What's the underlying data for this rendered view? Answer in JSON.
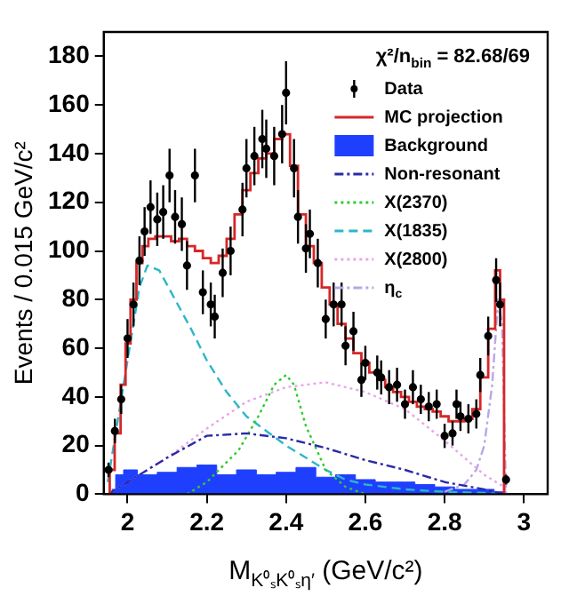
{
  "chart_data": {
    "type": "line",
    "xlabel": "M$_{K⁰ₛK⁰ₛη′}$ (GeV/c²)",
    "ylabel": "Events / 0.015 GeV/c²",
    "annotations": [
      "χ²/n$_{bin}$ = 82.68/69"
    ],
    "xlim": [
      1.94,
      3.06
    ],
    "xticks": [
      2,
      2.2,
      2.4,
      2.6,
      2.8,
      3
    ],
    "ylim": [
      0,
      190
    ],
    "yticks": [
      0,
      20,
      40,
      60,
      80,
      100,
      120,
      140,
      160,
      180
    ],
    "grid": false,
    "legend": "top right",
    "series": [
      {
        "name": "Data",
        "type": "scatter",
        "marker": "circle",
        "color": "#000000",
        "x": [
          1.952,
          1.968,
          1.984,
          2.0,
          2.015,
          2.03,
          2.043,
          2.058,
          2.075,
          2.09,
          2.106,
          2.12,
          2.137,
          2.15,
          2.17,
          2.19,
          2.21,
          2.22,
          2.24,
          2.26,
          2.29,
          2.3,
          2.32,
          2.34,
          2.35,
          2.37,
          2.39,
          2.4,
          2.42,
          2.43,
          2.45,
          2.46,
          2.48,
          2.5,
          2.52,
          2.54,
          2.55,
          2.57,
          2.59,
          2.6,
          2.63,
          2.64,
          2.66,
          2.68,
          2.7,
          2.72,
          2.74,
          2.76,
          2.78,
          2.8,
          2.82,
          2.83,
          2.84,
          2.86,
          2.88,
          2.89,
          2.91,
          2.93,
          2.94,
          2.955
        ],
        "values": [
          10,
          26,
          39,
          64,
          78,
          96,
          108,
          118,
          113,
          116,
          131,
          114,
          111,
          94,
          131,
          83,
          78,
          73,
          91,
          100,
          117,
          134,
          139,
          146,
          142,
          139,
          148,
          165,
          134,
          114,
          101,
          107,
          95,
          72,
          78,
          78,
          61,
          67,
          47,
          54,
          50,
          48,
          44,
          45,
          37,
          44,
          39,
          36,
          37,
          24,
          25,
          37,
          32,
          31,
          33,
          49,
          65,
          88,
          78,
          6
        ],
        "errors": [
          3,
          5,
          6,
          8,
          9,
          10,
          10,
          11,
          11,
          11,
          11,
          11,
          11,
          10,
          11,
          9,
          9,
          9,
          10,
          10,
          11,
          12,
          12,
          12,
          12,
          12,
          12,
          13,
          12,
          11,
          10,
          10,
          10,
          8,
          9,
          9,
          8,
          8,
          7,
          7,
          7,
          7,
          7,
          7,
          6,
          7,
          6,
          6,
          6,
          5,
          5,
          6,
          6,
          6,
          6,
          7,
          8,
          9,
          9,
          2
        ]
      },
      {
        "name": "MC projection",
        "type": "step",
        "color": "#d62728",
        "line_style": "solid",
        "x": [
          1.95,
          1.96,
          1.975,
          1.99,
          2.0,
          2.015,
          2.03,
          2.045,
          2.06,
          2.08,
          2.1,
          2.12,
          2.14,
          2.16,
          2.18,
          2.2,
          2.22,
          2.24,
          2.26,
          2.28,
          2.3,
          2.32,
          2.34,
          2.36,
          2.38,
          2.4,
          2.42,
          2.44,
          2.46,
          2.48,
          2.5,
          2.52,
          2.54,
          2.56,
          2.58,
          2.6,
          2.62,
          2.64,
          2.66,
          2.68,
          2.7,
          2.72,
          2.74,
          2.76,
          2.78,
          2.8,
          2.82,
          2.84,
          2.86,
          2.88,
          2.9,
          2.92,
          2.935,
          2.945,
          2.955
        ],
        "values": [
          0,
          10,
          25,
          45,
          62,
          80,
          95,
          102,
          105,
          106,
          106,
          104,
          105,
          102,
          100,
          97,
          95,
          98,
          105,
          115,
          125,
          132,
          138,
          140,
          146,
          148,
          135,
          115,
          102,
          95,
          85,
          78,
          70,
          64,
          58,
          54,
          50,
          47,
          44,
          42,
          40,
          38,
          36,
          35,
          34,
          32,
          30,
          30,
          31,
          35,
          48,
          68,
          92,
          80,
          0
        ]
      },
      {
        "name": "Background",
        "type": "area",
        "color": "#1f3fff",
        "x": [
          1.96,
          1.98,
          2.0,
          2.05,
          2.1,
          2.15,
          2.2,
          2.25,
          2.3,
          2.35,
          2.4,
          2.45,
          2.5,
          2.55,
          2.6,
          2.65,
          2.7,
          2.75,
          2.8,
          2.85,
          2.9,
          2.95
        ],
        "values": [
          2,
          8,
          10,
          8,
          9,
          11,
          12,
          8,
          10,
          8,
          9,
          11,
          7,
          8,
          6,
          5,
          5,
          4,
          3,
          2,
          2,
          1
        ]
      },
      {
        "name": "Non-resonant",
        "type": "line",
        "color": "#2a2aa8",
        "line_style": "dashdot",
        "x": [
          1.95,
          2.0,
          2.1,
          2.2,
          2.3,
          2.4,
          2.5,
          2.6,
          2.7,
          2.8,
          2.9,
          2.95
        ],
        "values": [
          0,
          5,
          15,
          24,
          25,
          23,
          19,
          14,
          10,
          5,
          2,
          0
        ]
      },
      {
        "name": "X(2370)",
        "type": "line",
        "color": "#2ecc2e",
        "line_style": "dotted",
        "x": [
          2.15,
          2.2,
          2.28,
          2.33,
          2.37,
          2.4,
          2.42,
          2.45,
          2.5,
          2.55,
          2.6
        ],
        "values": [
          0,
          5,
          18,
          32,
          45,
          49,
          45,
          28,
          10,
          3,
          0
        ]
      },
      {
        "name": "X(1835)",
        "type": "line",
        "color": "#2ab7c9",
        "line_style": "dashed",
        "x": [
          1.95,
          2.0,
          2.03,
          2.05,
          2.08,
          2.12,
          2.16,
          2.2,
          2.25,
          2.3,
          2.35,
          2.4,
          2.45,
          2.5,
          2.55,
          2.6,
          2.7,
          2.8,
          2.9,
          2.95
        ],
        "values": [
          5,
          55,
          85,
          94,
          92,
          80,
          68,
          55,
          42,
          32,
          26,
          20,
          15,
          10,
          6,
          4,
          2,
          1,
          0.5,
          0
        ]
      },
      {
        "name": "X(2800)",
        "type": "line",
        "color": "#e8a6e8",
        "line_style": "dotted",
        "x": [
          1.95,
          2.0,
          2.1,
          2.2,
          2.3,
          2.4,
          2.5,
          2.6,
          2.7,
          2.8,
          2.85,
          2.9,
          2.95,
          2.96
        ],
        "values": [
          0,
          5,
          15,
          27,
          38,
          44,
          46,
          42,
          35,
          22,
          15,
          8,
          3,
          0
        ]
      },
      {
        "name": "η$_{c}$",
        "type": "line",
        "color": "#b9a6e6",
        "line_style": "dashdot",
        "x": [
          2.8,
          2.85,
          2.88,
          2.9,
          2.92,
          2.935,
          2.945,
          2.955
        ],
        "values": [
          1,
          4,
          10,
          20,
          45,
          80,
          70,
          0
        ]
      }
    ]
  }
}
